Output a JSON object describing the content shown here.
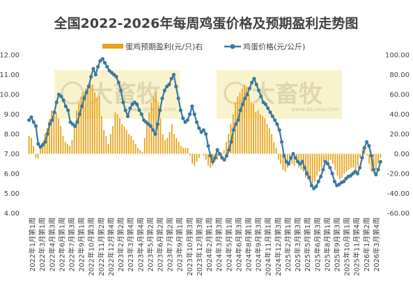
{
  "chart_data": {
    "type": "bar+line",
    "title": "全国2022-2026年每周鸡蛋价格及预期盈利走势图",
    "legend": {
      "placement": "top",
      "entries": [
        "蛋鸡预期盈利(元/只)右",
        "鸡蛋价格(元/公斤)"
      ]
    },
    "left_axis": {
      "ylim": [
        4.0,
        12.0
      ],
      "ticks": [
        "4.00",
        "5.00",
        "6.00",
        "7.00",
        "8.00",
        "9.00",
        "10.00",
        "11.00",
        "12.00"
      ]
    },
    "right_axis": {
      "ylim": [
        -60,
        100
      ],
      "ticks": [
        "-60.00",
        "-40.00",
        "-20.00",
        "0.00",
        "20.00",
        "40.00",
        "60.00",
        "80.00",
        "100.00"
      ]
    },
    "x_tick_labels": [
      "2022年1月第1周",
      "2022年3月第1周",
      "2022年4月第3周",
      "2022年6月第1周",
      "2022年7月第3周",
      "2022年9月第1周",
      "2022年10月第3周",
      "2022年11月第2周",
      "2022年12月第4周",
      "2023年2月第2周",
      "2023年3月第4周",
      "2023年4月第4周",
      "2023年5月第2周",
      "2023年6月第2周",
      "2023年7月第2周",
      "2023年9月第1周",
      "2023年10月第3周",
      "2023年12月第3周",
      "2024年2月第1周",
      "2024年3月第3周",
      "2024年5月第1周",
      "2024年6月第3周",
      "2024年8月第1周",
      "2024年9月第3周",
      "2024年11月第1周",
      "2024年12月第3周",
      "2025年2月第1周",
      "2025年3月第3周",
      "2025年5月第1周",
      "2025年6月第3周",
      "2025年8月第1周",
      "2025年9月第3周",
      "2025年10月第1周",
      "2025年11月第4周",
      "2026年1月第2周",
      "2026年3月第4周"
    ],
    "series": [
      {
        "name": "蛋鸡预期盈利(元/只)右",
        "type": "bar",
        "axis": "right",
        "color": "#e8a317",
        "values": [
          18,
          16,
          8,
          -4,
          -5,
          6,
          12,
          20,
          26,
          35,
          44,
          38,
          42,
          36,
          28,
          18,
          12,
          10,
          8,
          14,
          28,
          44,
          52,
          58,
          62,
          66,
          70,
          72,
          70,
          62,
          56,
          58,
          38,
          24,
          18,
          10,
          20,
          28,
          42,
          40,
          36,
          30,
          28,
          24,
          20,
          18,
          14,
          10,
          6,
          4,
          2,
          16,
          32,
          42,
          52,
          58,
          62,
          50,
          36,
          20,
          14,
          16,
          22,
          30,
          20,
          16,
          12,
          8,
          6,
          6,
          6,
          -2,
          -10,
          -12,
          -8,
          -4,
          0,
          -2,
          -6,
          -12,
          -14,
          -12,
          -8,
          -6,
          -2,
          -4,
          4,
          12,
          20,
          30,
          40,
          52,
          58,
          62,
          66,
          70,
          68,
          60,
          52,
          50,
          42,
          44,
          40,
          38,
          36,
          30,
          26,
          20,
          12,
          6,
          -6,
          -10,
          -16,
          -18,
          -14,
          -12,
          -10,
          -12,
          -8,
          -14,
          -16,
          -18,
          -24,
          -26,
          -28,
          -30,
          -28,
          -22,
          -18,
          -14,
          -8,
          -6,
          -8,
          -6,
          -10,
          -16,
          -22,
          -26,
          -24,
          -20,
          -18,
          -16,
          -14,
          -14,
          -16,
          -12,
          -4,
          4,
          8,
          -2,
          -10,
          -18,
          -20,
          -16,
          -10,
          -4
        ]
      },
      {
        "name": "鸡蛋价格(元/公斤)",
        "type": "line",
        "axis": "left",
        "color": "#3a78a0",
        "values": [
          8.7,
          8.85,
          8.6,
          8.4,
          7.5,
          7.35,
          7.45,
          7.6,
          8.0,
          8.5,
          8.7,
          9.1,
          9.6,
          10.0,
          9.9,
          9.7,
          9.4,
          9.2,
          8.6,
          8.5,
          8.4,
          8.6,
          9.0,
          9.4,
          9.8,
          10.1,
          10.4,
          10.9,
          11.3,
          11.0,
          11.4,
          11.7,
          11.8,
          11.6,
          11.4,
          11.2,
          11.1,
          11.0,
          10.9,
          10.6,
          10.2,
          9.6,
          9.2,
          8.9,
          9.3,
          9.5,
          9.6,
          9.5,
          9.2,
          9.0,
          8.7,
          8.6,
          8.5,
          8.4,
          8.2,
          8.0,
          8.5,
          9.2,
          9.8,
          10.2,
          10.4,
          10.5,
          10.8,
          11.0,
          10.4,
          9.8,
          9.2,
          8.8,
          8.6,
          8.7,
          9.0,
          9.4,
          9.0,
          8.6,
          8.3,
          8.1,
          8.2,
          8.0,
          7.4,
          6.9,
          6.6,
          6.8,
          7.2,
          7.0,
          6.8,
          6.7,
          6.9,
          7.2,
          7.6,
          8.2,
          8.5,
          8.7,
          9.2,
          9.5,
          9.8,
          10.0,
          10.3,
          10.6,
          10.8,
          10.5,
          10.2,
          9.9,
          9.6,
          9.5,
          9.3,
          9.1,
          8.9,
          8.7,
          8.5,
          8.2,
          7.6,
          6.9,
          6.6,
          6.5,
          6.8,
          7.0,
          6.8,
          6.6,
          6.5,
          6.6,
          6.3,
          6.0,
          5.8,
          5.4,
          5.25,
          5.35,
          5.6,
          5.85,
          6.2,
          6.6,
          6.5,
          6.3,
          6.0,
          5.6,
          5.4,
          5.45,
          5.55,
          5.6,
          5.75,
          5.85,
          5.9,
          6.0,
          6.1,
          6.0,
          6.3,
          6.8,
          7.3,
          7.6,
          7.4,
          6.9,
          6.2,
          5.95,
          6.2,
          6.6
        ]
      }
    ],
    "grid": "none",
    "watermarks": [
      {
        "text": "大畜牧",
        "url": "www.dxumu.com"
      },
      {
        "text": "大畜牧",
        "url": "www.dxumu.com"
      }
    ]
  }
}
